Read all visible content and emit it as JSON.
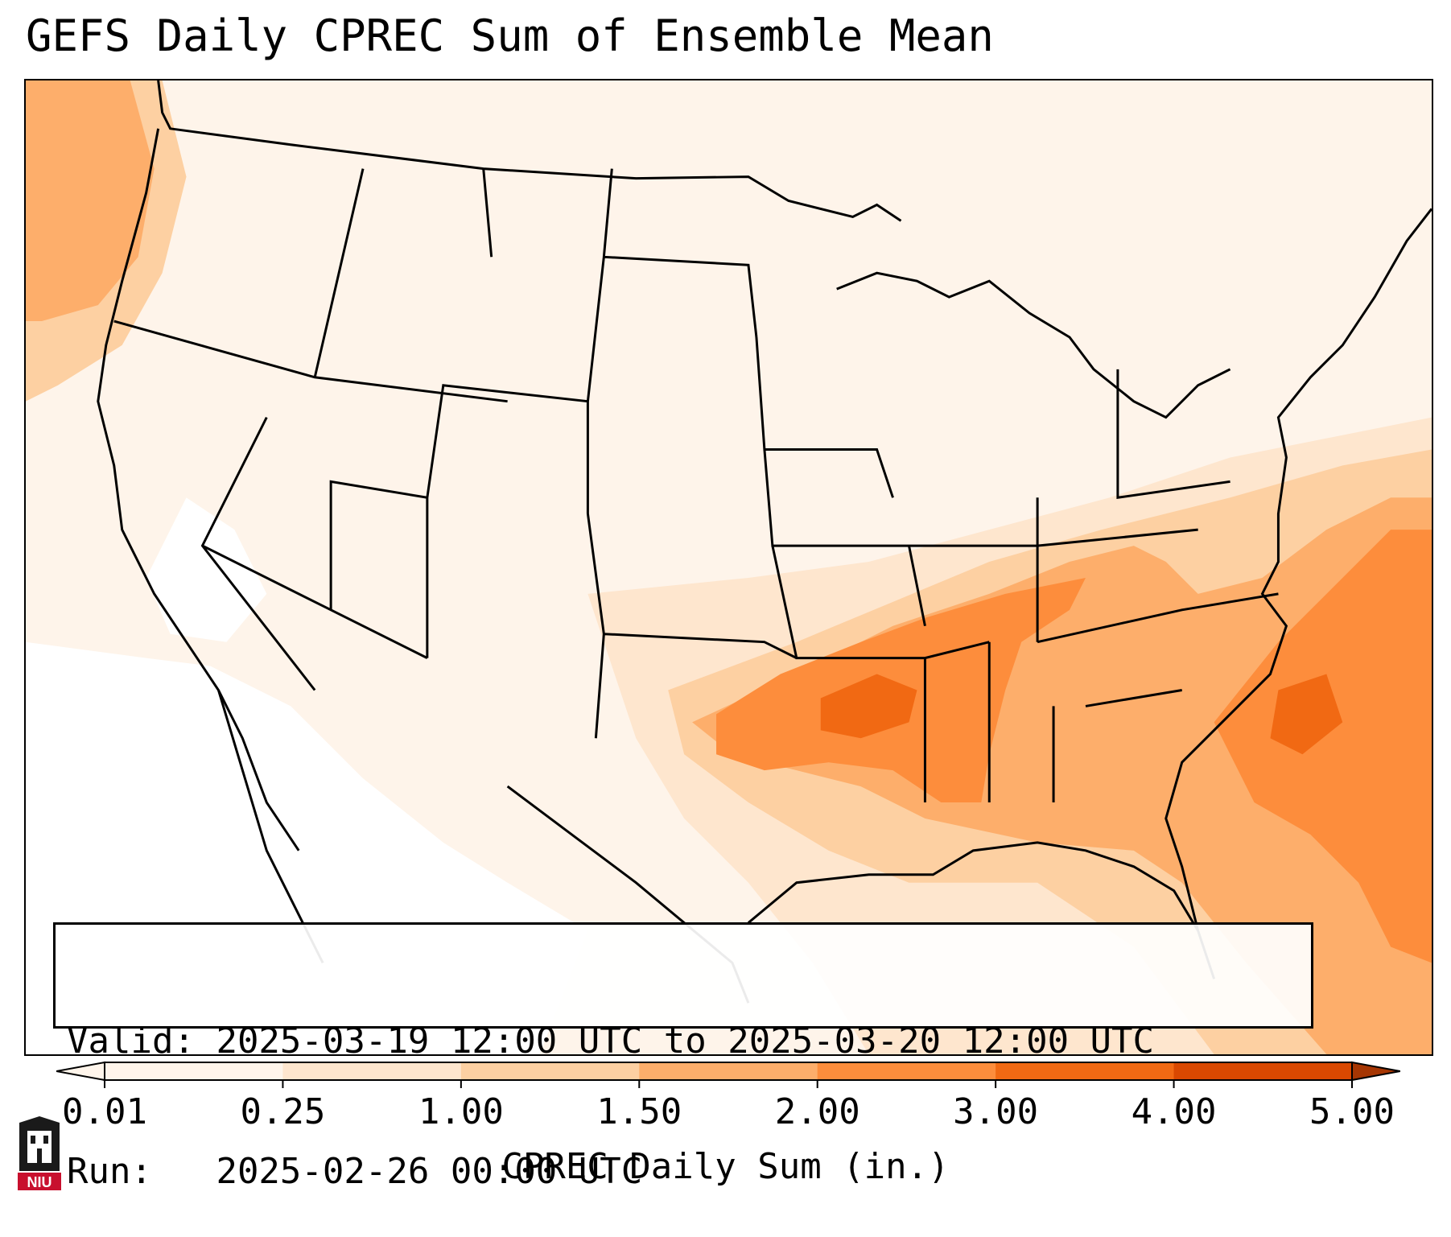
{
  "title": "GEFS Daily CPREC Sum of Ensemble Mean",
  "info": {
    "valid_label": "Valid:",
    "valid_value": "2025-03-19 12:00 UTC to 2025-03-20 12:00 UTC",
    "run_label": "Run:",
    "run_value": "2025-02-26 00:00 UTC"
  },
  "colorbar": {
    "label": "CPREC Daily Sum (in.)",
    "ticks": [
      "0.01",
      "0.25",
      "1.00",
      "1.50",
      "2.00",
      "3.00",
      "4.00",
      "5.00"
    ],
    "colors": [
      "#fff5eb",
      "#fee6ce",
      "#fdd0a2",
      "#fdae6b",
      "#fd8d3c",
      "#f16913",
      "#d94801",
      "#a63603"
    ]
  },
  "logo": {
    "text": "NIU",
    "color": "#c8102e"
  }
}
